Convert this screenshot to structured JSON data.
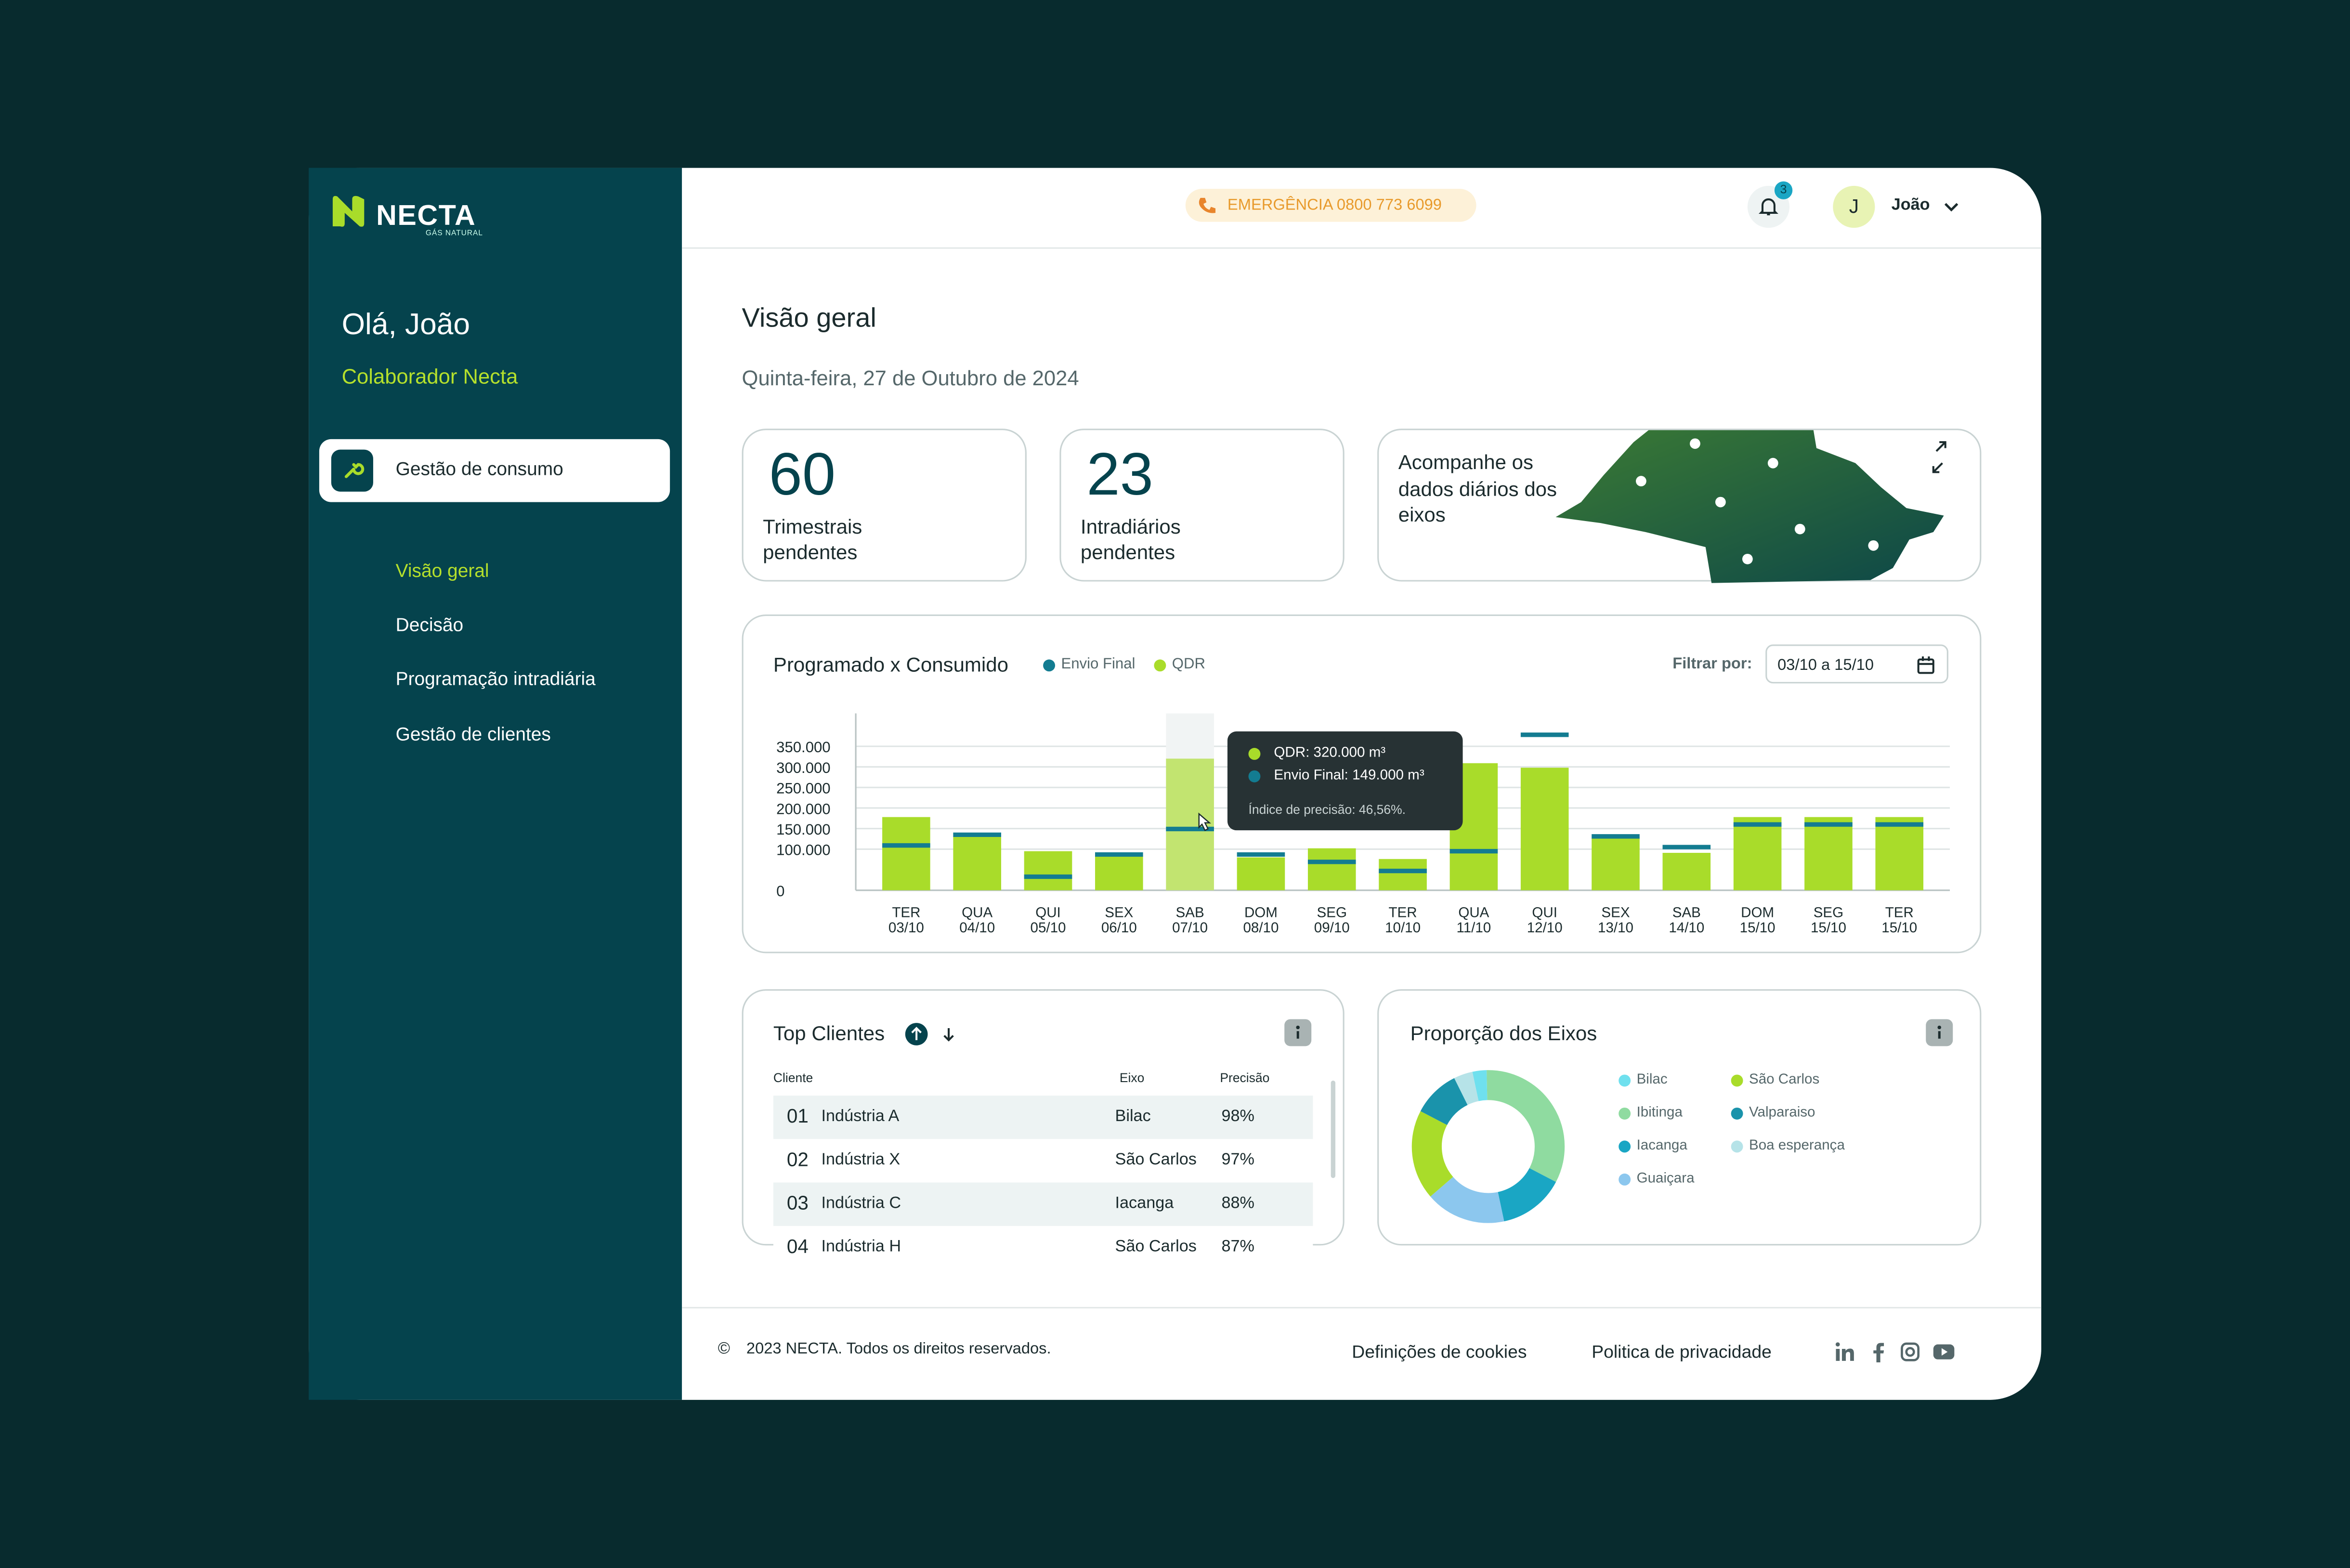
{
  "brand": {
    "name": "NECTA",
    "tagline": "GÁS NATURAL"
  },
  "sidebar": {
    "greeting": "Olá, João",
    "role": "Colaborador Necta",
    "section": "Gestão de consumo",
    "items": [
      "Visão geral",
      "Decisão",
      "Programação intradiária",
      "Gestão de clientes"
    ]
  },
  "header": {
    "emergency": "EMERGÊNCIA 0800 773 6099",
    "notifications": 3,
    "avatar": "J",
    "user": "João"
  },
  "page": {
    "title": "Visão geral",
    "date": "Quinta-feira, 27 de Outubro de 2024"
  },
  "stats": [
    {
      "value": 60,
      "label": "Trimestrais pendentes"
    },
    {
      "value": 23,
      "label": "Intradiários pendentes"
    }
  ],
  "map_card": {
    "text": "Acompanhe os dados diários dos eixos"
  },
  "chart": {
    "type": "bar",
    "title": "Programado x Consumido",
    "filter_label": "Filtrar por:",
    "filter_value": "03/10 a 15/10",
    "categories": [
      [
        "TER",
        "03/10"
      ],
      [
        "QUA",
        "04/10"
      ],
      [
        "QUI",
        "05/10"
      ],
      [
        "SEX",
        "06/10"
      ],
      [
        "SAB",
        "07/10"
      ],
      [
        "DOM",
        "08/10"
      ],
      [
        "SEG",
        "09/10"
      ],
      [
        "TER",
        "10/10"
      ],
      [
        "QUA",
        "11/10"
      ],
      [
        "QUI",
        "12/10"
      ],
      [
        "SEX",
        "13/10"
      ],
      [
        "SAB",
        "14/10"
      ],
      [
        "DOM",
        "15/10"
      ],
      [
        "SEG",
        "15/10"
      ],
      [
        "TER",
        "15/10"
      ]
    ],
    "series": [
      {
        "name": "Envio Final",
        "color": "#137c91",
        "values": [
          109000,
          135000,
          33000,
          87000,
          149000,
          87000,
          69000,
          47000,
          95000,
          378000,
          131000,
          105000,
          160000,
          160000,
          160000
        ]
      },
      {
        "name": "QDR",
        "color": "#a9dc2a",
        "values": [
          178000,
          131000,
          95000,
          84000,
          320000,
          80000,
          102000,
          76000,
          309000,
          298000,
          127000,
          91000,
          178000,
          178000,
          178000
        ]
      }
    ],
    "ylim": [
      0,
      430000
    ],
    "yticks": [
      0,
      {
        "value": 100000,
        "label": "100.000"
      },
      {
        "value": 150000,
        "label": "150.000"
      },
      {
        "value": 200000,
        "label": "200.000"
      },
      {
        "value": 250000,
        "label": "250.000"
      },
      {
        "value": 300000,
        "label": "300.000"
      },
      {
        "value": 350000,
        "label": "350.000"
      }
    ],
    "grid": true,
    "tooltip": {
      "index": 4,
      "lines": [
        "QDR: 320.000 m³",
        "Envio Final: 149.000 m³"
      ],
      "note": "Índice de precisão: 46,56%."
    }
  },
  "top_clients": {
    "title": "Top Clientes",
    "columns": [
      "Cliente",
      "Eixo",
      "Precisão"
    ],
    "rows": [
      [
        "01",
        "Indústria A",
        "Bilac",
        "98%"
      ],
      [
        "02",
        "Indústria X",
        "São Carlos",
        "97%"
      ],
      [
        "03",
        "Indústria C",
        "Iacanga",
        "88%"
      ],
      [
        "04",
        "Indústria H",
        "São Carlos",
        "87%"
      ]
    ]
  },
  "proportion": {
    "type": "donut",
    "title": "Proporção dos Eixos",
    "categories": [
      "Bilac",
      "Ibitinga",
      "Iacanga",
      "Guaiçara",
      "São Carlos",
      "Valparaiso",
      "Boa esperança"
    ],
    "values": [
      3,
      33,
      14,
      17,
      19,
      10,
      4
    ],
    "colors": [
      "#6fe0ee",
      "#8fdba0",
      "#1aa6c4",
      "#8cc7ee",
      "#a9dc2a",
      "#1a93ab",
      "#b6e3e8"
    ]
  },
  "footer": {
    "symbol": "©",
    "copyright": "2023 NECTA. Todos os direitos reservados.",
    "links": [
      "Definições de cookies",
      "Politica de privacidade"
    ]
  }
}
